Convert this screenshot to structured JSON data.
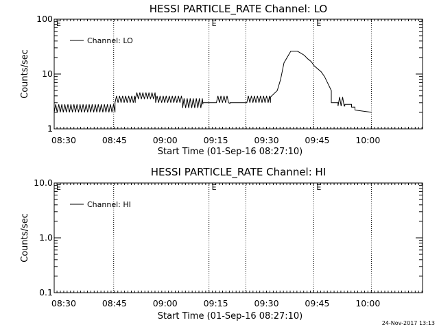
{
  "footer": {
    "timestamp": "24-Nov-2017 13:13"
  },
  "chart_data": [
    {
      "type": "line",
      "title": "HESSI PARTICLE_RATE Channel: LO",
      "xlabel": "Start Time (01-Sep-16 08:27:10)",
      "ylabel": "Counts/sec",
      "yscale": "log",
      "ylim": [
        1,
        100
      ],
      "ytick_labels": [
        "1",
        "10",
        "100"
      ],
      "ytick_values": [
        1,
        10,
        100
      ],
      "xlim_minutes_after_start": [
        0,
        109
      ],
      "xtick_labels": [
        "08:30",
        "08:45",
        "09:00",
        "09:15",
        "09:30",
        "09:45",
        "10:00"
      ],
      "xtick_minutes_after_start": [
        2.83,
        17.83,
        32.83,
        47.83,
        62.83,
        77.83,
        92.83
      ],
      "legend": {
        "entries": [
          "Channel: LO"
        ],
        "placement": "top-left"
      },
      "markers": [
        {
          "label": "E",
          "minute": 0
        },
        {
          "label": "E",
          "minute": 46
        },
        {
          "label": "E",
          "minute": 77
        }
      ],
      "vlines_minutes": [
        17.6,
        45.8,
        56.7,
        76.8,
        93.9
      ],
      "series": [
        {
          "name": "Channel: LO",
          "x": [
            0,
            18,
            18,
            24,
            24,
            30,
            30,
            38,
            38,
            44,
            44,
            48,
            48,
            52,
            52,
            57,
            57,
            64,
            64,
            66,
            67,
            68,
            70,
            72,
            73,
            74,
            75,
            76,
            77,
            79,
            80,
            82,
            82,
            84,
            84,
            86,
            86,
            88,
            88,
            89,
            89,
            94
          ],
          "y": [
            2.0,
            2.0,
            3.0,
            3.0,
            3.5,
            3.5,
            3.0,
            3.0,
            2.8,
            2.8,
            3.0,
            3.0,
            2.9,
            2.9,
            3.0,
            3.0,
            3.0,
            3.0,
            3.8,
            5.0,
            8.0,
            16.0,
            26.0,
            26.0,
            24.0,
            22.0,
            19.0,
            17.0,
            14.0,
            11.0,
            9.0,
            5.0,
            3.0,
            3.0,
            2.6,
            2.6,
            2.8,
            2.8,
            2.5,
            2.5,
            2.2,
            2.0
          ],
          "noise": [
            {
              "from": 0,
              "to": 18,
              "low": 2.0,
              "high": 2.8
            },
            {
              "from": 18,
              "to": 24,
              "low": 3.0,
              "high": 4.0
            },
            {
              "from": 24,
              "to": 30,
              "low": 3.5,
              "high": 4.6
            },
            {
              "from": 30,
              "to": 38,
              "low": 3.0,
              "high": 4.0
            },
            {
              "from": 38,
              "to": 44,
              "low": 2.4,
              "high": 3.6
            },
            {
              "from": 48,
              "to": 52,
              "low": 3.0,
              "high": 4.0
            },
            {
              "from": 57,
              "to": 64,
              "low": 3.0,
              "high": 4.0
            },
            {
              "from": 84,
              "to": 86,
              "low": 2.6,
              "high": 3.8
            },
            {
              "from": 88,
              "to": 94,
              "low": 2.0,
              "high": 2.8
            }
          ]
        }
      ]
    },
    {
      "type": "line",
      "title": "HESSI PARTICLE_RATE Channel: HI",
      "xlabel": "Start Time (01-Sep-16 08:27:10)",
      "ylabel": "Counts/sec",
      "yscale": "log",
      "ylim": [
        0.1,
        10.0
      ],
      "ytick_labels": [
        "0.1",
        "1.0",
        "10.0"
      ],
      "ytick_values": [
        0.1,
        1.0,
        10.0
      ],
      "xlim_minutes_after_start": [
        0,
        109
      ],
      "xtick_labels": [
        "08:30",
        "08:45",
        "09:00",
        "09:15",
        "09:30",
        "09:45",
        "10:00"
      ],
      "xtick_minutes_after_start": [
        2.83,
        17.83,
        32.83,
        47.83,
        62.83,
        77.83,
        92.83
      ],
      "legend": {
        "entries": [
          "Channel: HI"
        ],
        "placement": "top-left"
      },
      "markers": [
        {
          "label": "E",
          "minute": 0
        },
        {
          "label": "E",
          "minute": 46
        },
        {
          "label": "E",
          "minute": 77
        }
      ],
      "vlines_minutes": [
        17.6,
        45.8,
        56.7,
        76.8,
        93.9
      ],
      "series": [
        {
          "name": "Channel: HI",
          "x": [],
          "y": []
        }
      ]
    }
  ]
}
